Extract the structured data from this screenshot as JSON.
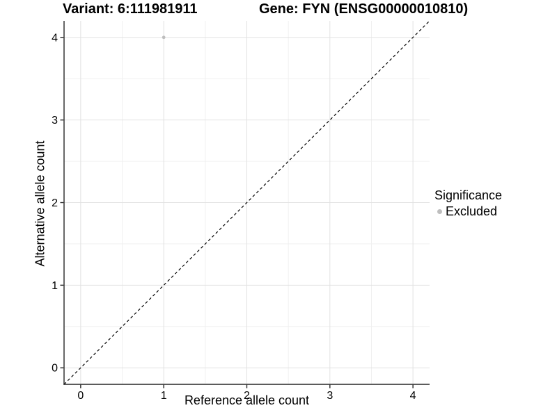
{
  "header": {
    "title_left": "Variant: 6:111981911",
    "title_right": "Gene: FYN (ENSG00000010810)"
  },
  "chart_data": {
    "type": "scatter",
    "title": "Variant: 6:111981911    Gene: FYN (ENSG00000010810)",
    "xlabel": "Reference allele count",
    "ylabel": "Alternative allele count",
    "xlim": [
      -0.2,
      4.2
    ],
    "ylim": [
      -0.2,
      4.2
    ],
    "xticks": [
      0,
      1,
      2,
      3,
      4
    ],
    "yticks": [
      0,
      1,
      2,
      3,
      4
    ],
    "minor_xticks": [
      0.5,
      1.5,
      2.5,
      3.5
    ],
    "minor_yticks": [
      0.5,
      1.5,
      2.5,
      3.5
    ],
    "grid": "major+minor",
    "series": [
      {
        "name": "Excluded",
        "color": "#bebebe",
        "points": [
          {
            "x": 1,
            "y": 4
          }
        ]
      }
    ],
    "reference_line": {
      "equation": "y = x",
      "style": "dashed",
      "color": "#000000"
    },
    "legend": {
      "title": "Significance",
      "position": "right",
      "items": [
        {
          "label": "Excluded",
          "color": "#bebebe",
          "marker": "circle"
        }
      ]
    }
  },
  "colors": {
    "background": "#ffffff",
    "grid_major": "#e2e2e2",
    "grid_minor": "#f0f0f0",
    "axis": "#262626",
    "text": "#000000"
  }
}
